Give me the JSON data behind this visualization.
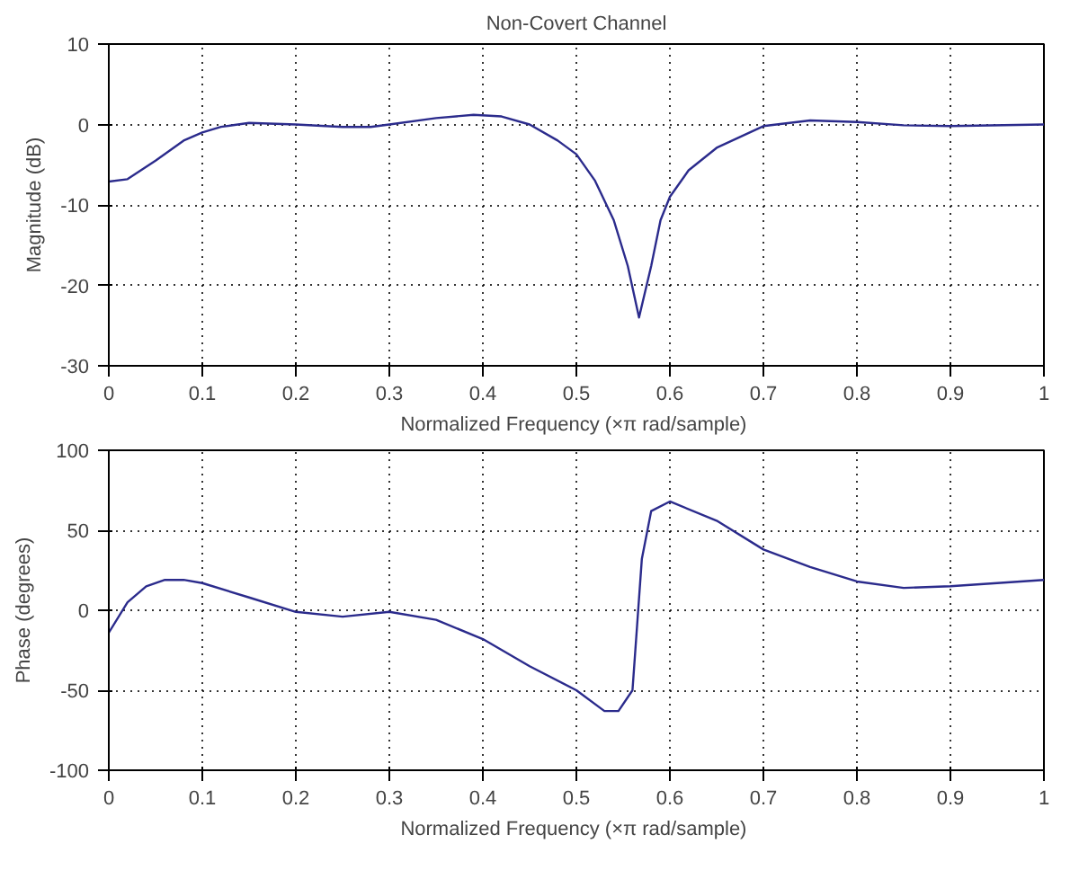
{
  "chart_data": [
    {
      "type": "line",
      "title": "Non-Covert Channel",
      "xlabel": "Normalized Frequency  (×π rad/sample)",
      "ylabel": "Magnitude (dB)",
      "x": [
        0,
        0.02,
        0.05,
        0.08,
        0.1,
        0.12,
        0.15,
        0.2,
        0.25,
        0.28,
        0.3,
        0.35,
        0.39,
        0.42,
        0.45,
        0.48,
        0.5,
        0.52,
        0.54,
        0.555,
        0.567,
        0.58,
        0.59,
        0.6,
        0.62,
        0.65,
        0.7,
        0.75,
        0.8,
        0.85,
        0.9,
        1.0
      ],
      "series": [
        {
          "color": "#2b2b8c",
          "values": [
            -7.1,
            -6.8,
            -4.5,
            -2,
            -1,
            -0.3,
            0.2,
            0,
            -0.3,
            -0.3,
            0,
            0.8,
            1.2,
            1,
            0,
            -2,
            -3.7,
            -7,
            -11.9,
            -17.6,
            -24,
            -17.6,
            -11.9,
            -9,
            -5.7,
            -2.9,
            -0.2,
            0.5,
            0.3,
            -0.1,
            -0.2,
            0
          ]
        }
      ],
      "xlim": [
        0,
        1
      ],
      "ylim": [
        -30,
        10
      ],
      "xticks": [
        0,
        0.1,
        0.2,
        0.3,
        0.4,
        0.5,
        0.6,
        0.7,
        0.8,
        0.9,
        1
      ],
      "yticks": [
        -30,
        -20,
        -10,
        0,
        10
      ],
      "grid": true,
      "line_style": "solid"
    },
    {
      "type": "line",
      "xlabel": "Normalized Frequency  (×π rad/sample)",
      "ylabel": "Phase (degrees)",
      "x": [
        0,
        0.02,
        0.04,
        0.06,
        0.08,
        0.1,
        0.15,
        0.2,
        0.25,
        0.3,
        0.35,
        0.4,
        0.45,
        0.5,
        0.53,
        0.545,
        0.56,
        0.565,
        0.57,
        0.58,
        0.6,
        0.65,
        0.7,
        0.75,
        0.8,
        0.85,
        0.9,
        0.95,
        1.0
      ],
      "series": [
        {
          "color": "#2b2b8c",
          "values": [
            -14,
            5,
            15,
            19,
            19,
            17,
            8,
            -1,
            -4,
            -1,
            -6,
            -18,
            -35,
            -50,
            -63,
            -63,
            -50,
            -9,
            32,
            62,
            68,
            56,
            38,
            27,
            18,
            14,
            15,
            17,
            19
          ]
        }
      ],
      "xlim": [
        0,
        1
      ],
      "ylim": [
        -100,
        100
      ],
      "xticks": [
        0,
        0.1,
        0.2,
        0.3,
        0.4,
        0.5,
        0.6,
        0.7,
        0.8,
        0.9,
        1
      ],
      "yticks": [
        -100,
        -50,
        0,
        50,
        100
      ],
      "grid": true,
      "line_style": "solid"
    }
  ]
}
